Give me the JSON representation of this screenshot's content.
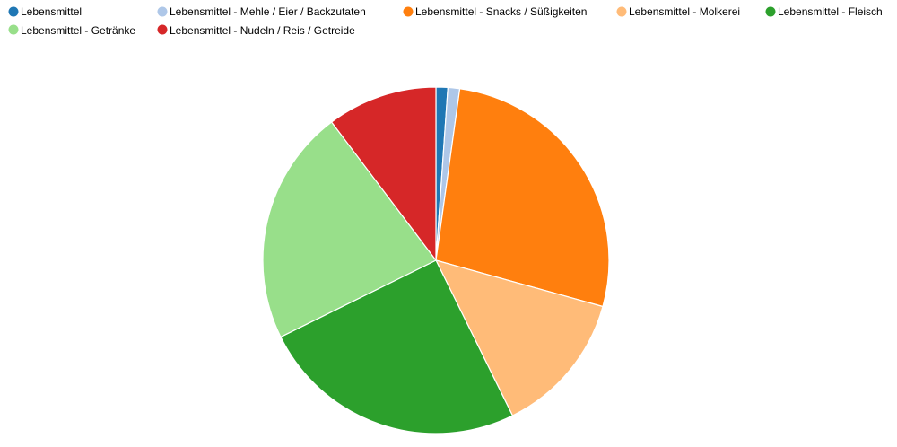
{
  "chart_data": {
    "type": "pie",
    "title": "",
    "legend_position": "top",
    "series": [
      {
        "name": "Lebensmittel",
        "value": 1.1,
        "color": "#1f77b4"
      },
      {
        "name": "Lebensmittel - Mehle / Eier / Backzutaten",
        "value": 1.1,
        "color": "#aec7e8"
      },
      {
        "name": "Lebensmittel - Snacks / Süßigkeiten",
        "value": 27.1,
        "color": "#ff7f0e"
      },
      {
        "name": "Lebensmittel - Molkerei",
        "value": 13.4,
        "color": "#ffbb78"
      },
      {
        "name": "Lebensmittel - Fleisch",
        "value": 25.0,
        "color": "#2ca02c"
      },
      {
        "name": "Lebensmittel - Getränke",
        "value": 22.0,
        "color": "#98df8a"
      },
      {
        "name": "Lebensmittel - Nudeln / Reis / Getreide",
        "value": 10.3,
        "color": "#d62728"
      }
    ]
  }
}
